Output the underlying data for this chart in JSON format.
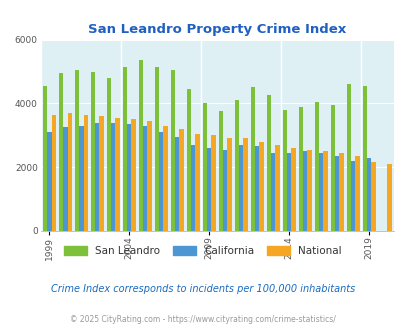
{
  "title": "San Leandro Property Crime Index",
  "years": [
    1999,
    2000,
    2001,
    2002,
    2003,
    2004,
    2005,
    2006,
    2007,
    2008,
    2009,
    2010,
    2011,
    2012,
    2013,
    2014,
    2015,
    2016,
    2017,
    2018,
    2019,
    2020
  ],
  "san_leandro": [
    4550,
    4950,
    5050,
    5000,
    4800,
    5150,
    5350,
    5150,
    5050,
    4450,
    4000,
    3750,
    4100,
    4500,
    4250,
    3800,
    3900,
    4050,
    3950,
    4600,
    4550,
    null
  ],
  "california": [
    3100,
    3250,
    3300,
    3400,
    3400,
    3350,
    3300,
    3100,
    2950,
    2700,
    2600,
    2550,
    2700,
    2650,
    2450,
    2450,
    2500,
    2450,
    2350,
    2200,
    2300,
    null
  ],
  "national": [
    3650,
    3700,
    3650,
    3600,
    3550,
    3500,
    3450,
    3300,
    3200,
    3050,
    3000,
    2900,
    2900,
    2800,
    2700,
    2600,
    2550,
    2500,
    2450,
    2350,
    2150,
    2100
  ],
  "colors": {
    "san_leandro": "#7dc13a",
    "california": "#4d96d4",
    "national": "#f5a623"
  },
  "bg_color": "#dff0f5",
  "ylim": [
    0,
    6000
  ],
  "yticks": [
    0,
    2000,
    4000,
    6000
  ],
  "xlabel_years": [
    1999,
    2004,
    2009,
    2014,
    2019
  ],
  "legend_labels": [
    "San Leandro",
    "California",
    "National"
  ],
  "subtitle": "Crime Index corresponds to incidents per 100,000 inhabitants",
  "footer": "© 2025 CityRating.com - https://www.cityrating.com/crime-statistics/",
  "title_color": "#2060c0",
  "subtitle_color": "#1a6bbf",
  "footer_color": "#999999",
  "bar_width": 0.27,
  "fig_width": 4.06,
  "fig_height": 3.3,
  "dpi": 100
}
